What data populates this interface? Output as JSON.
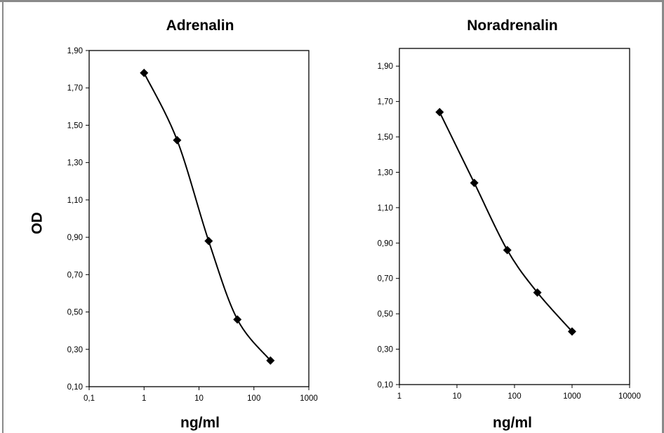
{
  "shared": {
    "ylabel": "OD",
    "colors": {
      "series": "#000000",
      "plot_border": "#000000",
      "frame": "#8a8a8a"
    }
  },
  "chart_data": [
    {
      "type": "line",
      "title": "Adrenalin",
      "xlabel": "ng/ml",
      "ylabel": "OD",
      "x_scale": "log",
      "xlim": [
        0.1,
        1000
      ],
      "ylim": [
        0.1,
        1.9
      ],
      "xticks": [
        "0,1",
        "1",
        "10",
        "100",
        "1000"
      ],
      "yticks": [
        "1,90",
        "1,70",
        "1,50",
        "1,30",
        "1,10",
        "0,90",
        "0,70",
        "0,50",
        "0,30",
        "0,10"
      ],
      "grid": false,
      "marker": "diamond",
      "smooth": true,
      "x": [
        1,
        4,
        15,
        50,
        200
      ],
      "y": [
        1.78,
        1.42,
        0.88,
        0.46,
        0.24
      ]
    },
    {
      "type": "line",
      "title": "Noradrenalin",
      "xlabel": "ng/ml",
      "ylabel": "",
      "x_scale": "log",
      "xlim": [
        1,
        10000
      ],
      "ylim": [
        0.1,
        2.0
      ],
      "xticks": [
        "1",
        "10",
        "100",
        "1000",
        "10000"
      ],
      "yticks": [
        "1,90",
        "1,70",
        "1,50",
        "1,30",
        "1,10",
        "0,90",
        "0,70",
        "0,50",
        "0,30",
        "0,10"
      ],
      "grid": false,
      "marker": "diamond",
      "smooth": true,
      "x": [
        5,
        20,
        75,
        250,
        1000
      ],
      "y": [
        1.64,
        1.24,
        0.86,
        0.62,
        0.4
      ]
    }
  ]
}
